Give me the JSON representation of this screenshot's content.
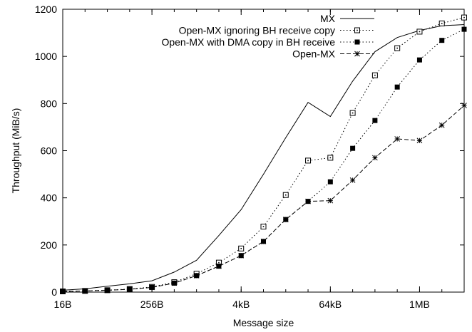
{
  "chart_data": {
    "type": "line",
    "title": "",
    "xlabel": "Message size",
    "ylabel": "Throughput (MiB/s)",
    "x_scale": "log2",
    "x": [
      16,
      32,
      64,
      128,
      256,
      512,
      1024,
      2048,
      4096,
      8192,
      16384,
      32768,
      65536,
      131072,
      262144,
      524288,
      1048576,
      2097152,
      4194304
    ],
    "xlim": [
      16,
      4194304
    ],
    "ylim": [
      0,
      1200
    ],
    "xticks": [
      {
        "value": 16,
        "label": "16B"
      },
      {
        "value": 256,
        "label": "256B"
      },
      {
        "value": 4096,
        "label": "4kB"
      },
      {
        "value": 65536,
        "label": "64kB"
      },
      {
        "value": 1048576,
        "label": "1MB"
      }
    ],
    "yticks": [
      0,
      200,
      400,
      600,
      800,
      1000,
      1200
    ],
    "grid": false,
    "legend_position": "top-right",
    "series": [
      {
        "name": "MX",
        "style": "solid",
        "marker": "none",
        "values": [
          8,
          14,
          25,
          35,
          48,
          85,
          135,
          240,
          350,
          500,
          655,
          805,
          745,
          895,
          1020,
          1080,
          1110,
          1130,
          1135
        ]
      },
      {
        "name": "Open-MX ignoring BH receive copy",
        "style": "dotted",
        "marker": "open-square",
        "values": [
          3,
          5,
          8,
          13,
          22,
          42,
          78,
          125,
          185,
          278,
          412,
          558,
          570,
          760,
          920,
          1035,
          1105,
          1140,
          1165
        ]
      },
      {
        "name": "Open-MX with DMA copy in BH receive",
        "style": "dotted",
        "marker": "filled-square",
        "values": [
          3,
          5,
          8,
          12,
          20,
          38,
          70,
          110,
          155,
          215,
          308,
          385,
          468,
          610,
          728,
          870,
          985,
          1068,
          1115
        ]
      },
      {
        "name": "Open-MX",
        "style": "dashed",
        "marker": "star",
        "values": [
          3,
          5,
          8,
          12,
          20,
          38,
          70,
          110,
          155,
          215,
          308,
          385,
          388,
          475,
          570,
          650,
          643,
          708,
          792
        ]
      }
    ]
  }
}
